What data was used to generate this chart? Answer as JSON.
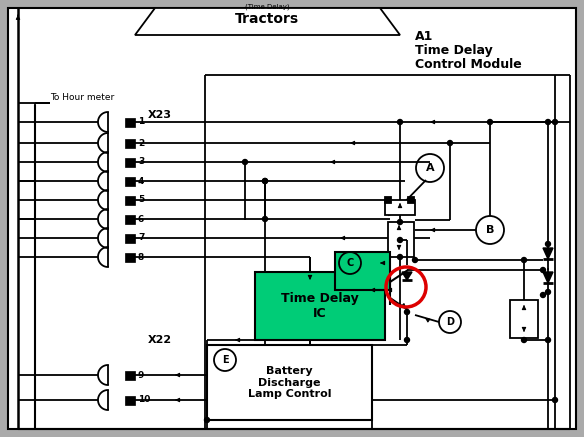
{
  "bg_color": "#aaaaaa",
  "inner_bg": "#ffffff",
  "line_color": "#000000",
  "green_fill": "#00cc77",
  "red_color": "#dd0000",
  "white_fill": "#ffffff",
  "title_A1": "A1",
  "title_line2": "Time Delay",
  "title_line3": "Control Module",
  "tractors_label": "Tractors",
  "hour_meter_label": "To Hour meter",
  "x23_label": "X23",
  "x22_label": "X22",
  "time_delay_label": "Time Delay\nIC",
  "battery_label": "Battery\nDischarge\nLamp Control",
  "pin_x23": [
    "1",
    "2",
    "3",
    "4",
    "5",
    "6",
    "7",
    "8"
  ],
  "pin_x22": [
    "9",
    "10"
  ]
}
